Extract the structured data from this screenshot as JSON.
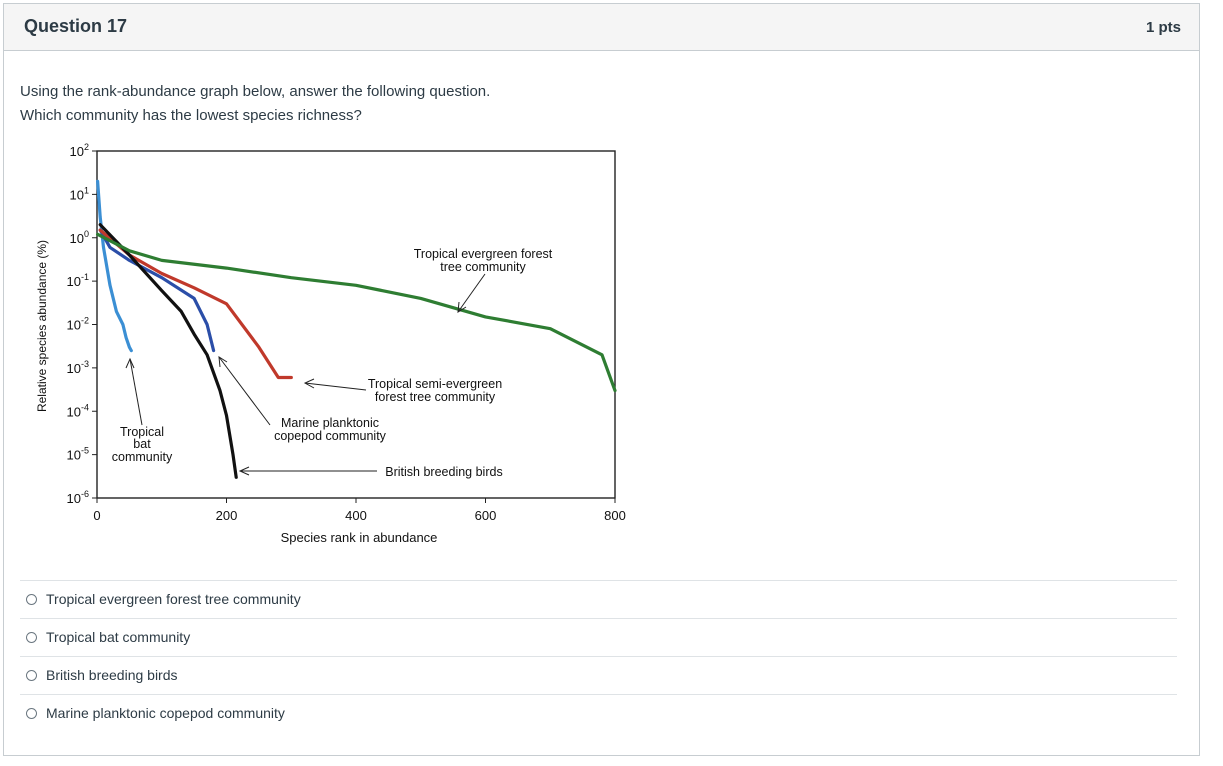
{
  "question": {
    "title": "Question 17",
    "points": "1 pts",
    "text_line1": "Using the rank-abundance graph below, answer the following question.",
    "text_line2": "Which community has the lowest species richness?"
  },
  "chart_data": {
    "type": "line",
    "xlabel": "Species rank in abundance",
    "ylabel": "Relative species abundance (%)",
    "xlim": [
      0,
      800
    ],
    "ylim": [
      1e-06,
      100
    ],
    "y_scale": "log",
    "x_ticks": [
      "0",
      "200",
      "400",
      "600",
      "800"
    ],
    "y_ticks": [
      {
        "base": "10",
        "exp": "2"
      },
      {
        "base": "10",
        "exp": "1"
      },
      {
        "base": "10",
        "exp": "0"
      },
      {
        "base": "10",
        "exp": "-1"
      },
      {
        "base": "10",
        "exp": "-2"
      },
      {
        "base": "10",
        "exp": "-3"
      },
      {
        "base": "10",
        "exp": "-4"
      },
      {
        "base": "10",
        "exp": "-5"
      },
      {
        "base": "10",
        "exp": "-6"
      }
    ],
    "series": [
      {
        "name": "Tropical bat community",
        "color": "#3b8fd4",
        "x": [
          1,
          5,
          10,
          20,
          30,
          40,
          45,
          50,
          53
        ],
        "y": [
          20,
          3,
          0.6,
          0.08,
          0.02,
          0.01,
          0.005,
          0.003,
          0.0025
        ]
      },
      {
        "name": "Marine planktonic copepod community",
        "color": "#2b4ea8",
        "x": [
          5,
          20,
          50,
          100,
          150,
          170,
          180
        ],
        "y": [
          1.5,
          0.6,
          0.3,
          0.12,
          0.04,
          0.01,
          0.0025
        ]
      },
      {
        "name": "Tropical semi-evergreen forest tree community",
        "color": "#c0392b",
        "x": [
          5,
          50,
          100,
          150,
          200,
          250,
          280,
          300
        ],
        "y": [
          1.5,
          0.4,
          0.15,
          0.07,
          0.03,
          0.003,
          0.0006,
          0.0006
        ]
      },
      {
        "name": "British breeding birds",
        "color": "#111111",
        "x": [
          5,
          50,
          100,
          130,
          150,
          170,
          190,
          200,
          210,
          215
        ],
        "y": [
          2,
          0.4,
          0.06,
          0.02,
          0.006,
          0.002,
          0.0003,
          8e-05,
          1e-05,
          3e-06
        ]
      },
      {
        "name": "Tropical evergreen forest tree community",
        "color": "#2e7d32",
        "x": [
          1,
          50,
          100,
          200,
          300,
          400,
          500,
          600,
          700,
          780,
          800
        ],
        "y": [
          1.2,
          0.5,
          0.3,
          0.2,
          0.12,
          0.08,
          0.04,
          0.015,
          0.008,
          0.002,
          0.0003
        ]
      }
    ],
    "annotations": [
      {
        "lines": [
          "Tropical evergreen forest",
          "tree community"
        ]
      },
      {
        "lines": [
          "Tropical semi-evergreen",
          "forest tree community"
        ]
      },
      {
        "lines": [
          "Marine planktonic",
          "copepod community"
        ]
      },
      {
        "lines": [
          "British breeding birds"
        ]
      },
      {
        "lines": [
          "Tropical",
          "bat",
          "community"
        ]
      }
    ]
  },
  "answers": [
    "Tropical evergreen forest tree community",
    "Tropical bat community",
    "British breeding birds",
    "Marine planktonic copepod community"
  ]
}
